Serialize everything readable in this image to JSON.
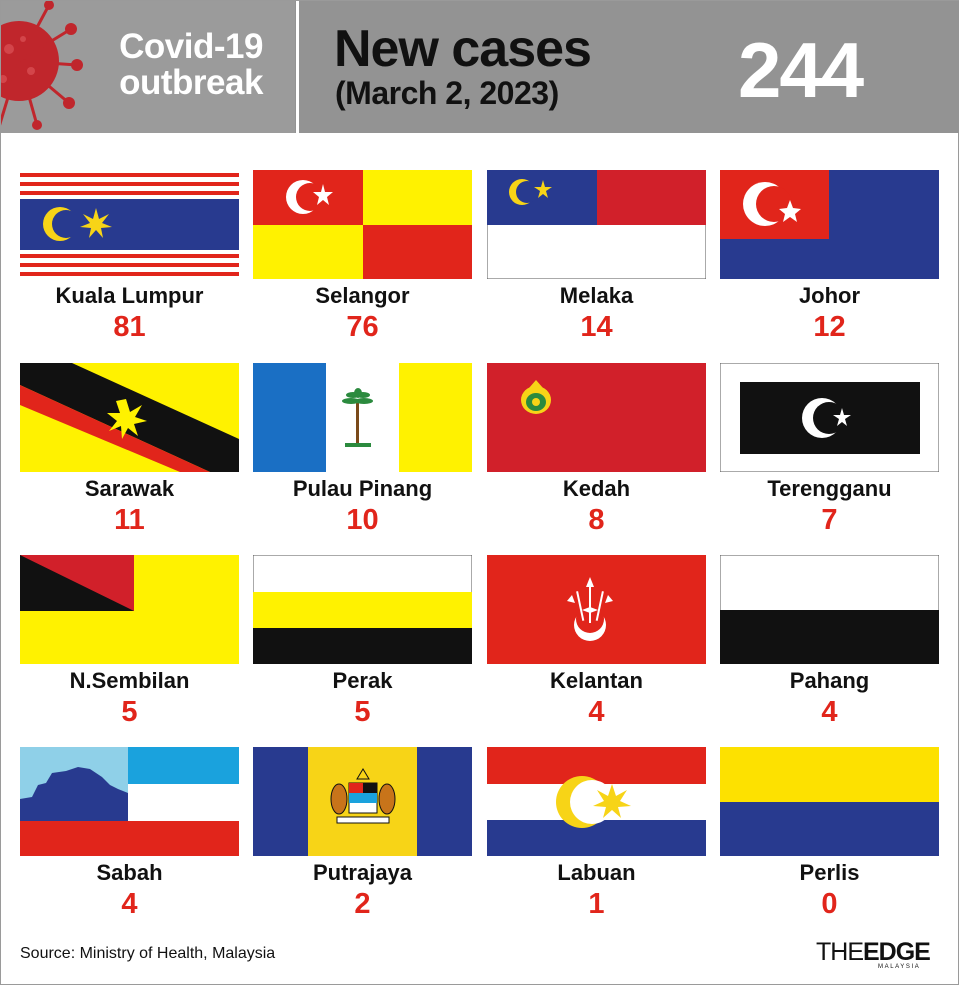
{
  "header": {
    "section_line1": "Covid-19",
    "section_line2": "outbreak",
    "title": "New cases",
    "date": "(March 2, 2023)",
    "total": "244"
  },
  "states": [
    {
      "name": "Kuala Lumpur",
      "cases": "81",
      "flag_icon": "kuala-lumpur-flag-icon"
    },
    {
      "name": "Selangor",
      "cases": "76",
      "flag_icon": "selangor-flag-icon"
    },
    {
      "name": "Melaka",
      "cases": "14",
      "flag_icon": "melaka-flag-icon"
    },
    {
      "name": "Johor",
      "cases": "12",
      "flag_icon": "johor-flag-icon"
    },
    {
      "name": "Sarawak",
      "cases": "11",
      "flag_icon": "sarawak-flag-icon"
    },
    {
      "name": "Pulau Pinang",
      "cases": "10",
      "flag_icon": "pulau-pinang-flag-icon"
    },
    {
      "name": "Kedah",
      "cases": "8",
      "flag_icon": "kedah-flag-icon"
    },
    {
      "name": "Terengganu",
      "cases": "7",
      "flag_icon": "terengganu-flag-icon"
    },
    {
      "name": "N.Sembilan",
      "cases": "5",
      "flag_icon": "negeri-sembilan-flag-icon"
    },
    {
      "name": "Perak",
      "cases": "5",
      "flag_icon": "perak-flag-icon"
    },
    {
      "name": "Kelantan",
      "cases": "4",
      "flag_icon": "kelantan-flag-icon"
    },
    {
      "name": "Pahang",
      "cases": "4",
      "flag_icon": "pahang-flag-icon"
    },
    {
      "name": "Sabah",
      "cases": "4",
      "flag_icon": "sabah-flag-icon"
    },
    {
      "name": "Putrajaya",
      "cases": "2",
      "flag_icon": "putrajaya-flag-icon"
    },
    {
      "name": "Labuan",
      "cases": "1",
      "flag_icon": "labuan-flag-icon"
    },
    {
      "name": "Perlis",
      "cases": "0",
      "flag_icon": "perlis-flag-icon"
    }
  ],
  "footer": {
    "source": "Source: Ministry of Health, Malaysia",
    "logo_the": "THE",
    "logo_edge": "EDGE",
    "logo_sub": "MALAYSIA"
  },
  "colors": {
    "header_bg": "#939393",
    "case_count": "#e1251b",
    "virus": "#c0262c"
  }
}
